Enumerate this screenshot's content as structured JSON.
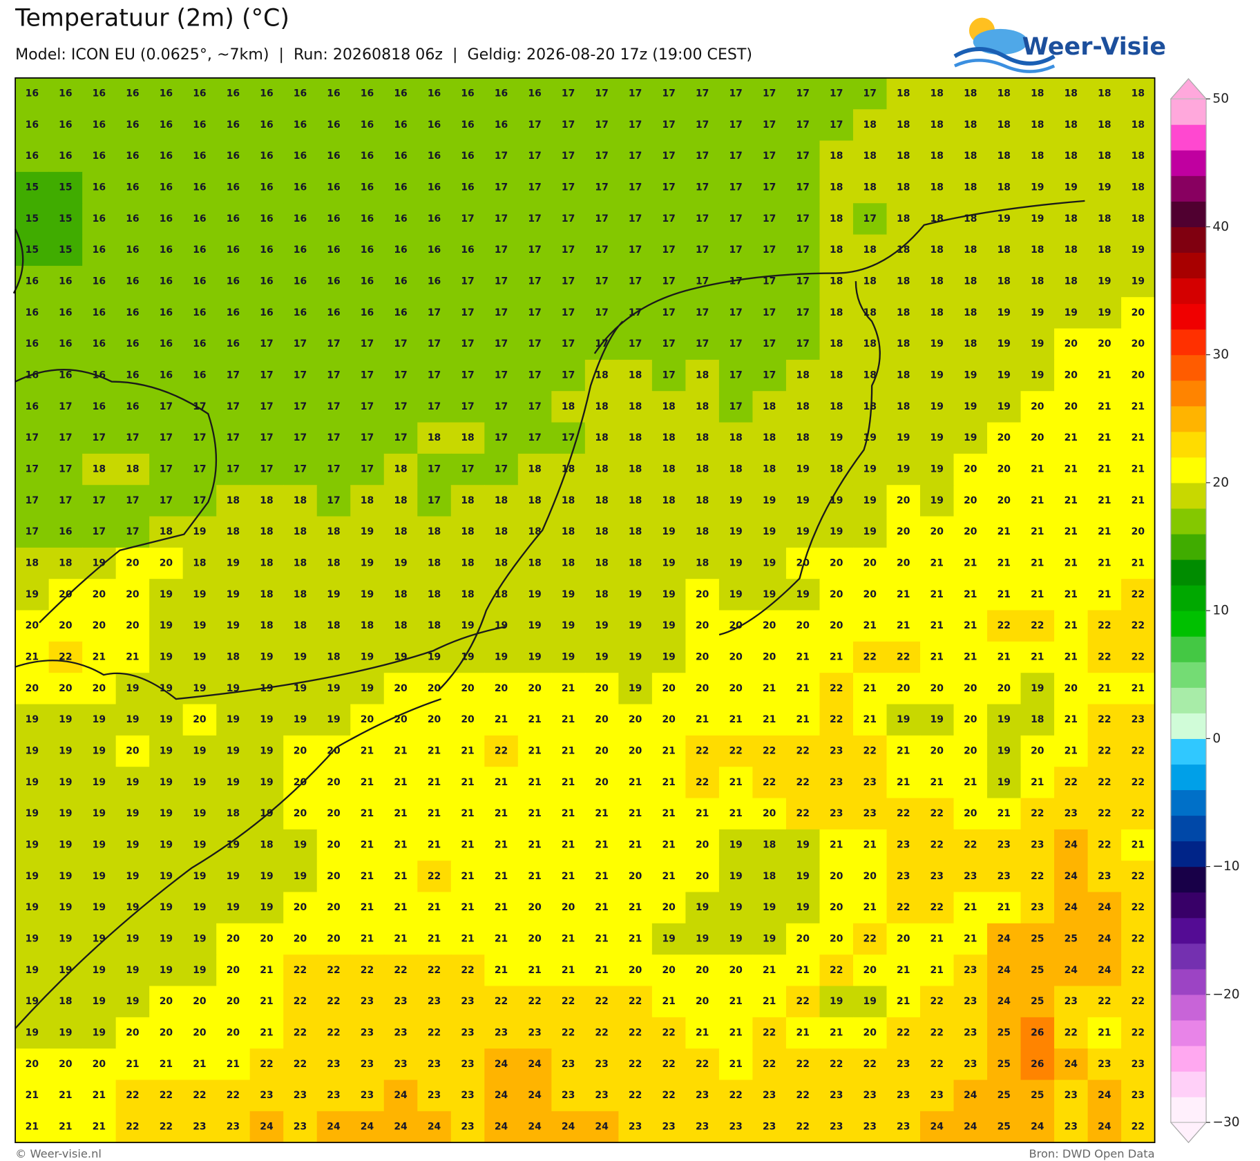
{
  "header": {
    "title": "Temperatuur (2m) (°C)",
    "subtitle": "Model: ICON EU (0.0625°, ~7km)  |  Run: 20260818 06z  |  Geldig: 2026-08-20 17z (19:00 CEST)"
  },
  "logo": "Weer-Visie",
  "map": {
    "values": [
      [
        16,
        16,
        16,
        16,
        16,
        16,
        16,
        16,
        16,
        16,
        16,
        16,
        16,
        16,
        16,
        16,
        17,
        17,
        17,
        17,
        17,
        17,
        17,
        17,
        17,
        17,
        18,
        18,
        18,
        18,
        18,
        18,
        18,
        18
      ],
      [
        16,
        16,
        16,
        16,
        16,
        16,
        16,
        16,
        16,
        16,
        16,
        16,
        16,
        16,
        16,
        17,
        17,
        17,
        17,
        17,
        17,
        17,
        17,
        17,
        17,
        18,
        18,
        18,
        18,
        18,
        18,
        18,
        18,
        18
      ],
      [
        16,
        16,
        16,
        16,
        16,
        16,
        16,
        16,
        16,
        16,
        16,
        16,
        16,
        16,
        17,
        17,
        17,
        17,
        17,
        17,
        17,
        17,
        17,
        17,
        18,
        18,
        18,
        18,
        18,
        18,
        18,
        18,
        18,
        18
      ],
      [
        15,
        15,
        16,
        16,
        16,
        16,
        16,
        16,
        16,
        16,
        16,
        16,
        16,
        16,
        17,
        17,
        17,
        17,
        17,
        17,
        17,
        17,
        17,
        17,
        18,
        18,
        18,
        18,
        18,
        18,
        19,
        19,
        19,
        18
      ],
      [
        15,
        15,
        16,
        16,
        16,
        16,
        16,
        16,
        16,
        16,
        16,
        16,
        16,
        17,
        17,
        17,
        17,
        17,
        17,
        17,
        17,
        17,
        17,
        17,
        18,
        17,
        18,
        18,
        18,
        19,
        19,
        18,
        18,
        18
      ],
      [
        15,
        15,
        16,
        16,
        16,
        16,
        16,
        16,
        16,
        16,
        16,
        16,
        16,
        16,
        17,
        17,
        17,
        17,
        17,
        17,
        17,
        17,
        17,
        17,
        18,
        18,
        18,
        18,
        18,
        18,
        18,
        18,
        18,
        19
      ],
      [
        16,
        16,
        16,
        16,
        16,
        16,
        16,
        16,
        16,
        16,
        16,
        16,
        16,
        17,
        17,
        17,
        17,
        17,
        17,
        17,
        17,
        17,
        17,
        17,
        18,
        18,
        18,
        18,
        18,
        18,
        18,
        18,
        19,
        19
      ],
      [
        16,
        16,
        16,
        16,
        16,
        16,
        16,
        16,
        16,
        16,
        16,
        16,
        17,
        17,
        17,
        17,
        17,
        17,
        17,
        17,
        17,
        17,
        17,
        17,
        18,
        18,
        18,
        18,
        18,
        19,
        19,
        19,
        19,
        20
      ],
      [
        16,
        16,
        16,
        16,
        16,
        16,
        16,
        17,
        17,
        17,
        17,
        17,
        17,
        17,
        17,
        17,
        17,
        17,
        17,
        17,
        17,
        17,
        17,
        17,
        18,
        18,
        18,
        19,
        18,
        19,
        19,
        20,
        20,
        20
      ],
      [
        16,
        16,
        16,
        16,
        16,
        16,
        17,
        17,
        17,
        17,
        17,
        17,
        17,
        17,
        17,
        17,
        17,
        18,
        18,
        17,
        18,
        17,
        17,
        18,
        18,
        18,
        18,
        19,
        19,
        19,
        19,
        20,
        21,
        20
      ],
      [
        16,
        17,
        16,
        16,
        17,
        17,
        17,
        17,
        17,
        17,
        17,
        17,
        17,
        17,
        17,
        17,
        18,
        18,
        18,
        18,
        18,
        17,
        18,
        18,
        18,
        18,
        18,
        19,
        19,
        19,
        20,
        20,
        21,
        21
      ],
      [
        17,
        17,
        17,
        17,
        17,
        17,
        17,
        17,
        17,
        17,
        17,
        17,
        18,
        18,
        17,
        17,
        17,
        18,
        18,
        18,
        18,
        18,
        18,
        18,
        19,
        19,
        19,
        19,
        19,
        20,
        20,
        21,
        21,
        21
      ],
      [
        17,
        17,
        18,
        18,
        17,
        17,
        17,
        17,
        17,
        17,
        17,
        18,
        17,
        17,
        17,
        18,
        18,
        18,
        18,
        18,
        18,
        18,
        18,
        19,
        18,
        19,
        19,
        19,
        20,
        20,
        21,
        21,
        21,
        21
      ],
      [
        17,
        17,
        17,
        17,
        17,
        17,
        18,
        18,
        18,
        17,
        18,
        18,
        17,
        18,
        18,
        18,
        18,
        18,
        18,
        18,
        18,
        19,
        19,
        19,
        19,
        19,
        20,
        19,
        20,
        20,
        21,
        21,
        21,
        21
      ],
      [
        17,
        16,
        17,
        17,
        18,
        19,
        18,
        18,
        18,
        18,
        19,
        18,
        18,
        18,
        18,
        18,
        18,
        18,
        18,
        19,
        18,
        19,
        19,
        19,
        19,
        19,
        20,
        20,
        20,
        21,
        21,
        21,
        21,
        20
      ],
      [
        18,
        18,
        19,
        20,
        20,
        18,
        19,
        18,
        18,
        18,
        19,
        19,
        18,
        18,
        18,
        18,
        18,
        18,
        18,
        19,
        18,
        19,
        19,
        20,
        20,
        20,
        20,
        21,
        21,
        21,
        21,
        21,
        21,
        21
      ],
      [
        19,
        20,
        20,
        20,
        19,
        19,
        19,
        18,
        18,
        19,
        19,
        18,
        18,
        18,
        18,
        19,
        19,
        18,
        19,
        19,
        20,
        19,
        19,
        19,
        20,
        20,
        21,
        21,
        21,
        21,
        21,
        21,
        21,
        22
      ],
      [
        20,
        20,
        20,
        20,
        19,
        19,
        19,
        18,
        18,
        18,
        18,
        18,
        18,
        19,
        19,
        19,
        19,
        19,
        19,
        19,
        20,
        20,
        20,
        20,
        20,
        21,
        21,
        21,
        21,
        22,
        22,
        21,
        22,
        22
      ],
      [
        21,
        22,
        21,
        21,
        19,
        19,
        18,
        19,
        19,
        18,
        19,
        19,
        19,
        19,
        19,
        19,
        19,
        19,
        19,
        19,
        20,
        20,
        20,
        21,
        21,
        22,
        22,
        21,
        21,
        21,
        21,
        21,
        22,
        22
      ],
      [
        20,
        20,
        20,
        19,
        19,
        19,
        19,
        19,
        19,
        19,
        19,
        20,
        20,
        20,
        20,
        20,
        21,
        20,
        19,
        20,
        20,
        20,
        21,
        21,
        22,
        21,
        20,
        20,
        20,
        20,
        19,
        20,
        21,
        21
      ],
      [
        19,
        19,
        19,
        19,
        19,
        20,
        19,
        19,
        19,
        19,
        20,
        20,
        20,
        20,
        21,
        21,
        21,
        20,
        20,
        20,
        21,
        21,
        21,
        21,
        22,
        21,
        19,
        19,
        20,
        19,
        18,
        21,
        22,
        23
      ],
      [
        19,
        19,
        19,
        20,
        19,
        19,
        19,
        19,
        20,
        20,
        21,
        21,
        21,
        21,
        22,
        21,
        21,
        20,
        20,
        21,
        22,
        22,
        22,
        22,
        23,
        22,
        21,
        20,
        20,
        19,
        20,
        21,
        22,
        22
      ],
      [
        19,
        19,
        19,
        19,
        19,
        19,
        19,
        19,
        20,
        20,
        21,
        21,
        21,
        21,
        21,
        21,
        21,
        20,
        21,
        21,
        22,
        21,
        22,
        22,
        23,
        23,
        21,
        21,
        21,
        19,
        21,
        22,
        22,
        22
      ],
      [
        19,
        19,
        19,
        19,
        19,
        19,
        18,
        19,
        20,
        20,
        21,
        21,
        21,
        21,
        21,
        21,
        21,
        21,
        21,
        21,
        21,
        21,
        20,
        22,
        23,
        23,
        22,
        22,
        20,
        21,
        22,
        23,
        22,
        22
      ],
      [
        19,
        19,
        19,
        19,
        19,
        19,
        19,
        18,
        19,
        20,
        21,
        21,
        21,
        21,
        21,
        21,
        21,
        21,
        21,
        21,
        20,
        19,
        18,
        19,
        21,
        21,
        23,
        22,
        22,
        23,
        23,
        24,
        22,
        21
      ],
      [
        19,
        19,
        19,
        19,
        19,
        19,
        19,
        19,
        19,
        20,
        21,
        21,
        22,
        21,
        21,
        21,
        21,
        21,
        20,
        21,
        20,
        19,
        18,
        19,
        20,
        20,
        23,
        23,
        23,
        23,
        22,
        24,
        23,
        22
      ],
      [
        19,
        19,
        19,
        19,
        19,
        19,
        19,
        19,
        20,
        20,
        21,
        21,
        21,
        21,
        21,
        20,
        20,
        21,
        21,
        20,
        19,
        19,
        19,
        19,
        20,
        21,
        22,
        22,
        21,
        21,
        23,
        24,
        24,
        22
      ],
      [
        19,
        19,
        19,
        19,
        19,
        19,
        20,
        20,
        20,
        20,
        21,
        21,
        21,
        21,
        21,
        20,
        21,
        21,
        21,
        19,
        19,
        19,
        19,
        20,
        20,
        22,
        20,
        21,
        21,
        24,
        25,
        25,
        24,
        22
      ],
      [
        19,
        19,
        19,
        19,
        19,
        19,
        20,
        21,
        22,
        22,
        22,
        22,
        22,
        22,
        21,
        21,
        21,
        21,
        20,
        20,
        20,
        20,
        21,
        21,
        22,
        20,
        21,
        21,
        23,
        24,
        25,
        24,
        24,
        22
      ],
      [
        19,
        18,
        19,
        19,
        20,
        20,
        20,
        21,
        22,
        22,
        23,
        23,
        23,
        23,
        22,
        22,
        22,
        22,
        22,
        21,
        20,
        21,
        21,
        22,
        19,
        19,
        21,
        22,
        23,
        24,
        25,
        23,
        22,
        22
      ],
      [
        19,
        19,
        19,
        20,
        20,
        20,
        20,
        21,
        22,
        22,
        23,
        23,
        22,
        23,
        23,
        23,
        22,
        22,
        22,
        22,
        21,
        21,
        22,
        21,
        21,
        20,
        22,
        22,
        23,
        25,
        26,
        22,
        21,
        22
      ],
      [
        20,
        20,
        20,
        21,
        21,
        21,
        21,
        22,
        22,
        23,
        23,
        23,
        23,
        23,
        24,
        24,
        23,
        23,
        22,
        22,
        22,
        21,
        22,
        22,
        22,
        22,
        23,
        22,
        23,
        25,
        26,
        24,
        23,
        23
      ],
      [
        21,
        21,
        21,
        22,
        22,
        22,
        22,
        23,
        23,
        23,
        23,
        24,
        23,
        23,
        24,
        24,
        23,
        23,
        22,
        22,
        23,
        22,
        23,
        22,
        23,
        23,
        23,
        23,
        24,
        25,
        25,
        23,
        24,
        23
      ],
      [
        21,
        21,
        21,
        22,
        22,
        23,
        23,
        24,
        23,
        24,
        24,
        24,
        24,
        23,
        24,
        24,
        24,
        24,
        23,
        23,
        23,
        23,
        23,
        22,
        23,
        23,
        23,
        24,
        24,
        25,
        24,
        23,
        24,
        22
      ]
    ]
  },
  "colorbar": {
    "lim": [
      -30,
      50
    ],
    "ticks": [
      {
        "value": -30,
        "label": "−30"
      },
      {
        "value": -20,
        "label": "−20"
      },
      {
        "value": -10,
        "label": "−10"
      },
      0,
      10,
      20,
      30,
      40,
      50
    ],
    "colors": [
      "#fff0fc",
      "#ffd0f8",
      "#ffa8f0",
      "#e884e8",
      "#c864d8",
      "#9c44c4",
      "#7430b0",
      "#540c94",
      "#380068",
      "#180048",
      "#002488",
      "#0048a8",
      "#0070c8",
      "#00a0e8",
      "#30c8ff",
      "#d0fcd8",
      "#a8eca8",
      "#74dc74",
      "#44c844",
      "#00c000",
      "#00a800",
      "#008c00",
      "#40ac00",
      "#84c800",
      "#c8d800",
      "#ffff00",
      "#ffdc00",
      "#ffb400",
      "#ff8400",
      "#ff5c00",
      "#ff3000",
      "#f00000",
      "#d40000",
      "#a80000",
      "#800010",
      "#500030",
      "#880060",
      "#c000a0",
      "#ff48d0",
      "#ffa8dc"
    ]
  },
  "footer": {
    "left": "© Weer-visie.nl",
    "right": "Bron: DWD Open Data"
  }
}
